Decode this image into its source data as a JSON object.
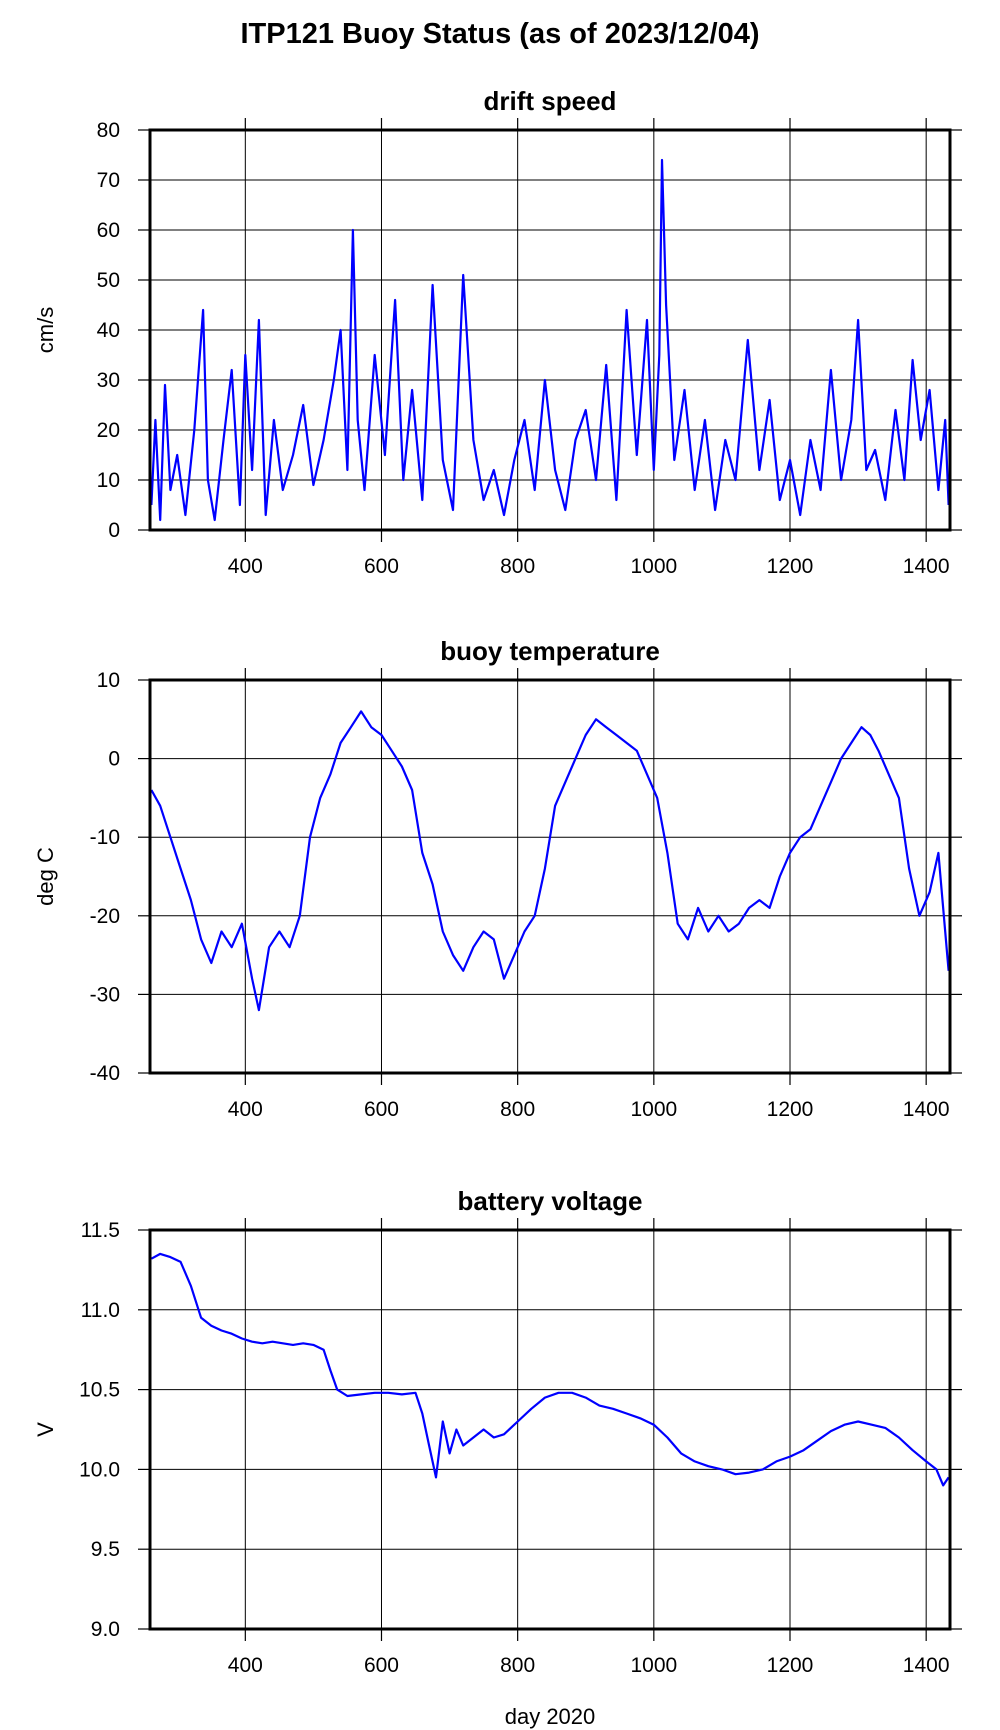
{
  "page": {
    "title": "ITP121 Buoy Status (as of 2023/12/04)"
  },
  "line_color": "#0000ff",
  "chart_data": [
    {
      "type": "line",
      "title": "drift speed",
      "xlabel": "",
      "ylabel": "cm/s",
      "xlim": [
        260,
        1435
      ],
      "ylim": [
        0,
        80
      ],
      "xticks": [
        "400",
        "600",
        "800",
        "1000",
        "1200",
        "1400"
      ],
      "yticks": [
        "0",
        "10",
        "20",
        "30",
        "40",
        "50",
        "60",
        "70",
        "80"
      ],
      "grid": true,
      "series": [
        {
          "color": "#0000ff",
          "x": [
            262,
            268,
            275,
            282,
            290,
            300,
            312,
            325,
            338,
            345,
            355,
            368,
            380,
            392,
            400,
            410,
            420,
            430,
            442,
            455,
            470,
            485,
            500,
            515,
            530,
            540,
            550,
            558,
            565,
            575,
            590,
            605,
            620,
            632,
            645,
            660,
            675,
            690,
            705,
            720,
            735,
            750,
            765,
            780,
            795,
            810,
            825,
            840,
            855,
            870,
            885,
            900,
            915,
            930,
            945,
            960,
            975,
            990,
            1000,
            1008,
            1012,
            1018,
            1030,
            1045,
            1060,
            1075,
            1090,
            1105,
            1120,
            1138,
            1155,
            1170,
            1185,
            1200,
            1215,
            1230,
            1245,
            1260,
            1275,
            1290,
            1300,
            1312,
            1325,
            1340,
            1355,
            1368,
            1380,
            1392,
            1405,
            1418,
            1428,
            1433
          ],
          "y": [
            5,
            22,
            2,
            29,
            8,
            15,
            3,
            20,
            44,
            10,
            2,
            18,
            32,
            5,
            35,
            12,
            42,
            3,
            22,
            8,
            15,
            25,
            9,
            18,
            30,
            40,
            12,
            60,
            22,
            8,
            35,
            15,
            46,
            10,
            28,
            6,
            49,
            14,
            4,
            51,
            18,
            6,
            12,
            3,
            14,
            22,
            8,
            30,
            12,
            4,
            18,
            24,
            10,
            33,
            6,
            44,
            15,
            42,
            12,
            35,
            74,
            45,
            14,
            28,
            8,
            22,
            4,
            18,
            10,
            38,
            12,
            26,
            6,
            14,
            3,
            18,
            8,
            32,
            10,
            22,
            42,
            12,
            16,
            6,
            24,
            10,
            34,
            18,
            28,
            8,
            22,
            5
          ]
        }
      ]
    },
    {
      "type": "line",
      "title": "buoy temperature",
      "xlabel": "",
      "ylabel": "deg C",
      "xlim": [
        260,
        1435
      ],
      "ylim": [
        -40,
        10
      ],
      "xticks": [
        "400",
        "600",
        "800",
        "1000",
        "1200",
        "1400"
      ],
      "yticks": [
        "-40",
        "-30",
        "-20",
        "-10",
        "0",
        "10"
      ],
      "grid": true,
      "series": [
        {
          "color": "#0000ff",
          "x": [
            262,
            275,
            290,
            305,
            320,
            335,
            350,
            365,
            380,
            395,
            410,
            420,
            435,
            450,
            465,
            480,
            495,
            510,
            525,
            540,
            555,
            570,
            585,
            600,
            615,
            630,
            645,
            660,
            675,
            690,
            705,
            720,
            735,
            750,
            765,
            780,
            795,
            810,
            825,
            840,
            855,
            870,
            885,
            900,
            915,
            930,
            945,
            960,
            975,
            990,
            1005,
            1020,
            1035,
            1050,
            1065,
            1080,
            1095,
            1110,
            1125,
            1140,
            1155,
            1170,
            1185,
            1200,
            1215,
            1230,
            1245,
            1260,
            1275,
            1290,
            1305,
            1318,
            1330,
            1345,
            1360,
            1375,
            1390,
            1405,
            1418,
            1428,
            1433
          ],
          "y": [
            -4,
            -6,
            -10,
            -14,
            -18,
            -23,
            -26,
            -22,
            -24,
            -21,
            -28,
            -32,
            -24,
            -22,
            -24,
            -20,
            -10,
            -5,
            -2,
            2,
            4,
            6,
            4,
            3,
            1,
            -1,
            -4,
            -12,
            -16,
            -22,
            -25,
            -27,
            -24,
            -22,
            -23,
            -28,
            -25,
            -22,
            -20,
            -14,
            -6,
            -3,
            0,
            3,
            5,
            4,
            3,
            2,
            1,
            -2,
            -5,
            -12,
            -21,
            -23,
            -19,
            -22,
            -20,
            -22,
            -21,
            -19,
            -18,
            -19,
            -15,
            -12,
            -10,
            -9,
            -6,
            -3,
            0,
            2,
            4,
            3,
            1,
            -2,
            -5,
            -14,
            -20,
            -17,
            -12,
            -22,
            -27
          ]
        }
      ]
    },
    {
      "type": "line",
      "title": "battery voltage",
      "xlabel": "day 2020",
      "ylabel": "V",
      "xlim": [
        260,
        1435
      ],
      "ylim": [
        9.0,
        11.5
      ],
      "xticks": [
        "400",
        "600",
        "800",
        "1000",
        "1200",
        "1400"
      ],
      "yticks": [
        "9.0",
        "9.5",
        "10.0",
        "10.5",
        "11.0",
        "11.5"
      ],
      "grid": true,
      "series": [
        {
          "color": "#0000ff",
          "x": [
            262,
            275,
            290,
            305,
            320,
            335,
            350,
            365,
            380,
            395,
            410,
            425,
            440,
            455,
            470,
            485,
            500,
            515,
            525,
            535,
            550,
            570,
            590,
            610,
            630,
            650,
            660,
            670,
            680,
            690,
            700,
            710,
            720,
            735,
            750,
            765,
            780,
            800,
            820,
            840,
            860,
            880,
            900,
            920,
            940,
            960,
            980,
            1000,
            1020,
            1040,
            1060,
            1080,
            1100,
            1120,
            1140,
            1160,
            1180,
            1200,
            1220,
            1240,
            1260,
            1280,
            1300,
            1320,
            1340,
            1360,
            1380,
            1400,
            1415,
            1425,
            1433
          ],
          "y": [
            11.32,
            11.35,
            11.33,
            11.3,
            11.15,
            10.95,
            10.9,
            10.87,
            10.85,
            10.82,
            10.8,
            10.79,
            10.8,
            10.79,
            10.78,
            10.79,
            10.78,
            10.75,
            10.62,
            10.5,
            10.46,
            10.47,
            10.48,
            10.48,
            10.47,
            10.48,
            10.35,
            10.15,
            9.95,
            10.3,
            10.1,
            10.25,
            10.15,
            10.2,
            10.25,
            10.2,
            10.22,
            10.3,
            10.38,
            10.45,
            10.48,
            10.48,
            10.45,
            10.4,
            10.38,
            10.35,
            10.32,
            10.28,
            10.2,
            10.1,
            10.05,
            10.02,
            10.0,
            9.97,
            9.98,
            10.0,
            10.05,
            10.08,
            10.12,
            10.18,
            10.24,
            10.28,
            10.3,
            10.28,
            10.26,
            10.2,
            10.12,
            10.05,
            10.0,
            9.9,
            9.95
          ]
        }
      ]
    }
  ]
}
